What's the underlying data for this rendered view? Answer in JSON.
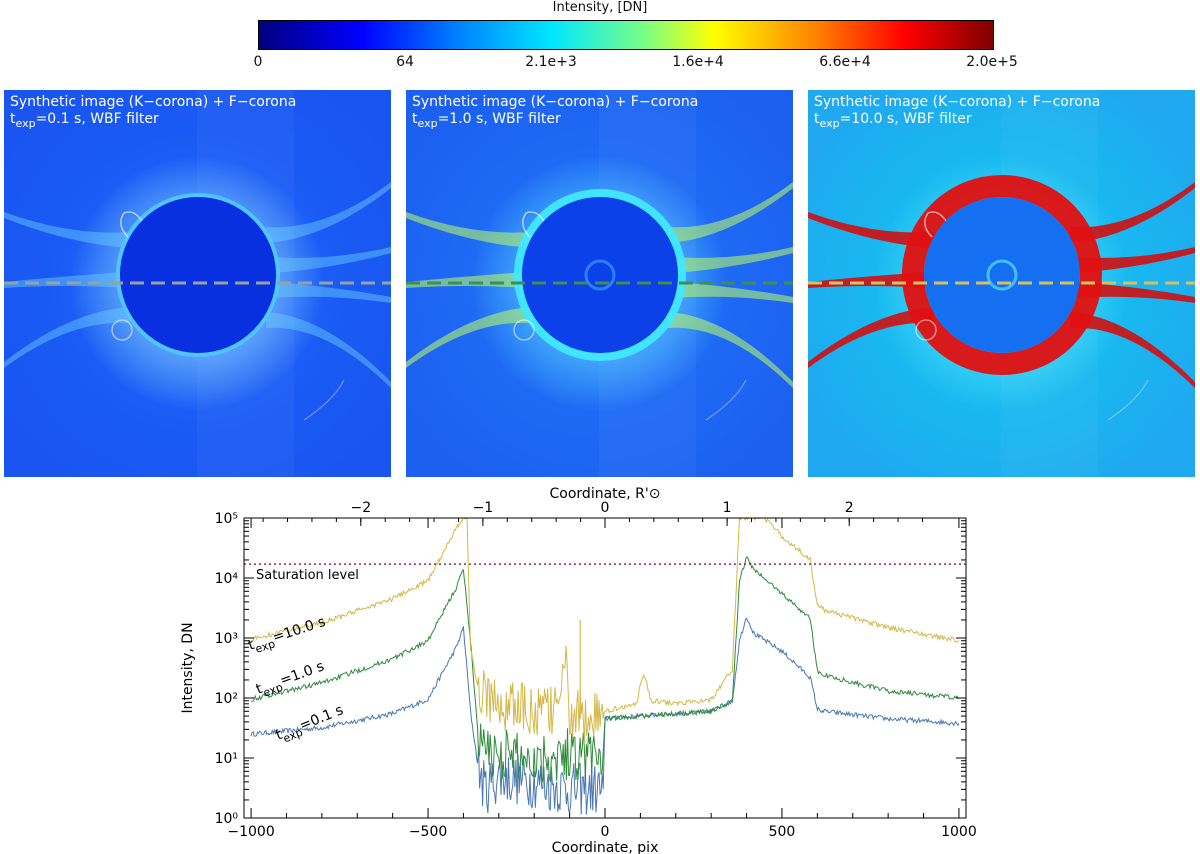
{
  "colorbar": {
    "title": "Intensity, [DN]",
    "tick_labels": [
      "0",
      "64",
      "2.1e+3",
      "1.6e+4",
      "6.6e+4",
      "2.0e+5"
    ],
    "colors": [
      "#00007f",
      "#0000ff",
      "#0080ff",
      "#00e8ff",
      "#7fff7f",
      "#ffff00",
      "#ff8000",
      "#ff0000",
      "#7f0000"
    ]
  },
  "panels": [
    {
      "label_line1": "Synthetic image (K−corona) + F−corona",
      "t_sub": "exp",
      "label_line2": "=0.1 s, WBF filter",
      "t_prefix": "t",
      "dash_color": "#9aa0a0",
      "style": "low"
    },
    {
      "label_line1": "Synthetic image (K−corona) + F−corona",
      "t_sub": "exp",
      "label_line2": "=1.0 s, WBF filter",
      "t_prefix": "t",
      "dash_color": "#3f8f4f",
      "style": "mid"
    },
    {
      "label_line1": "Synthetic image (K−corona) + F−corona",
      "t_sub": "exp",
      "label_line2": "=10.0 s, WBF filter",
      "t_prefix": "t",
      "dash_color": "#d8c060",
      "style": "high"
    }
  ],
  "chart_data": {
    "type": "line",
    "xlabel": "Coordinate, pix",
    "ylabel": "Intensity, DN",
    "top_xlabel": "Coordinate, R'⊙",
    "xlim": [
      -1020,
      1020
    ],
    "ylim": [
      1,
      100000
    ],
    "y_scale": "log",
    "x_ticks": [
      -1000,
      -500,
      0,
      500,
      1000
    ],
    "x_tick_labels": [
      "−1000",
      "−500",
      "0",
      "500",
      "1000"
    ],
    "y_ticks": [
      1,
      10,
      100,
      1000,
      10000,
      100000
    ],
    "y_tick_labels": [
      "10⁰",
      "10¹",
      "10²",
      "10³",
      "10⁴",
      "10⁵"
    ],
    "top_ticks": [
      -2,
      -1,
      0,
      1,
      2
    ],
    "top_tick_labels": [
      "−2",
      "−1",
      "0",
      "1",
      "2"
    ],
    "saturation_level": 17000,
    "saturation_label": "Saturation level",
    "series": [
      {
        "name_prefix": "t",
        "name_sub": "exp",
        "name_suffix": "=0.1 s",
        "color": "#4a78b0",
        "x": [
          -1000,
          -800,
          -600,
          -500,
          -420,
          -400,
          -380,
          -360,
          -340,
          -300,
          -200,
          -100,
          -5,
          0,
          100,
          200,
          300,
          360,
          380,
          400,
          420,
          500,
          580,
          600,
          620,
          800,
          1000
        ],
        "y": [
          25,
          32,
          55,
          95,
          700,
          1500,
          60,
          8,
          3,
          5,
          4,
          3,
          3,
          45,
          50,
          55,
          60,
          90,
          900,
          2300,
          1200,
          600,
          220,
          65,
          60,
          45,
          38
        ]
      },
      {
        "name_prefix": "t",
        "name_sub": "exp",
        "name_suffix": "=1.0 s",
        "color": "#2e8b3a",
        "x": [
          -1000,
          -800,
          -600,
          -500,
          -420,
          -400,
          -380,
          -360,
          -340,
          -300,
          -200,
          -100,
          -5,
          0,
          100,
          200,
          300,
          360,
          380,
          400,
          420,
          500,
          580,
          600,
          620,
          800,
          1000
        ],
        "y": [
          95,
          180,
          450,
          900,
          7000,
          14000,
          900,
          30,
          12,
          12,
          10,
          12,
          12,
          45,
          50,
          55,
          60,
          90,
          9000,
          22000,
          14000,
          5500,
          2100,
          280,
          240,
          130,
          100
        ]
      },
      {
        "name_prefix": "t",
        "name_sub": "exp",
        "name_suffix": "=10.0 s",
        "color": "#d4b84a",
        "x": [
          -1000,
          -800,
          -600,
          -500,
          -420,
          -400,
          -390,
          -380,
          -360,
          -340,
          -300,
          -200,
          -150,
          -120,
          -110,
          -100,
          -80,
          -70,
          -5,
          0,
          90,
          100,
          110,
          130,
          200,
          300,
          360,
          380,
          400,
          450,
          500,
          580,
          600,
          620,
          800,
          1000
        ],
        "y": [
          950,
          1800,
          4500,
          9000,
          70000,
          100000,
          100000,
          700,
          150,
          110,
          80,
          60,
          55,
          200,
          300,
          60,
          50,
          45,
          45,
          60,
          80,
          180,
          250,
          90,
          80,
          95,
          300,
          100000,
          100000,
          100000,
          50000,
          20000,
          3500,
          2900,
          1500,
          900
        ]
      }
    ],
    "spike": {
      "x": -70,
      "y": 2000
    }
  }
}
